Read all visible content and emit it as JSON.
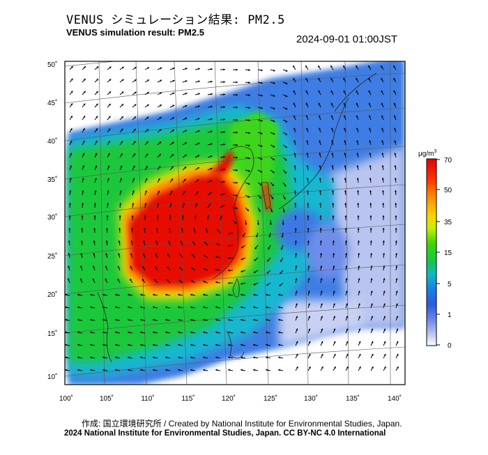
{
  "header": {
    "title_jp": "VENUS シミュレーション結果: PM2.5",
    "title_en": "VENUS simulation result: PM2.5",
    "timestamp": "2024-09-01 01:00JST"
  },
  "axes": {
    "lat_labels": [
      "50˚",
      "45˚",
      "40˚",
      "35˚",
      "30˚",
      "25˚",
      "20˚",
      "15˚",
      "10˚"
    ],
    "lon_labels": [
      "100˚",
      "105˚",
      "110˚",
      "115˚",
      "120˚",
      "125˚",
      "130˚",
      "135˚",
      "140˚"
    ]
  },
  "colorbar": {
    "unit_text": "μg/m",
    "unit_sup": "3",
    "tick_labels": [
      "70",
      "50",
      "35",
      "15",
      "5",
      "1",
      "0"
    ],
    "colors": [
      "#e50000",
      "#ff3a00",
      "#ff8a00",
      "#ffd000",
      "#c8f000",
      "#41d600",
      "#12c84a",
      "#0fb8c8",
      "#1a7fe0",
      "#2a5cdd",
      "#6e86e8",
      "#bcc6f0",
      "#ffffff"
    ]
  },
  "footer": {
    "credit": "作成: 国立環境研究所 / Created by National Institute for Environmental Studies, Japan.",
    "license": "2024 National Institute for Environmental Studies, Japan. CC BY-NC 4.0 International"
  },
  "colors": {
    "frame": "#000000",
    "high": "#e50000",
    "mid": "#18c820",
    "low": "#1e6ee0",
    "background_ocean": "#ffffff"
  }
}
